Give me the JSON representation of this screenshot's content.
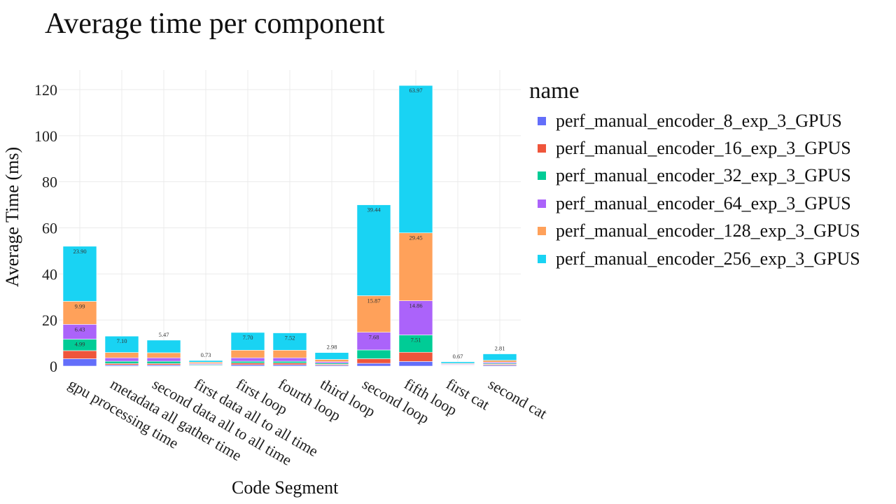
{
  "chart_data": {
    "type": "bar",
    "stacked": true,
    "title": "Average time per component",
    "xlabel": "Code Segment",
    "ylabel": "Average Time (ms)",
    "ylim": [
      0,
      128
    ],
    "yticks": [
      0,
      20,
      40,
      60,
      80,
      100,
      120
    ],
    "grid": true,
    "legend_title": "name",
    "legend_position": "right",
    "categories": [
      "gpu processing time",
      "metadata all gather time",
      "second data all to all time",
      "first data all to all time",
      "first loop",
      "fourth loop",
      "third loop",
      "second loop",
      "fifth loop",
      "first cat",
      "second cat"
    ],
    "series": [
      {
        "name": "perf_manual_encoder_8_exp_3_GPUS",
        "color": "#636efa",
        "values": [
          3.2,
          0.5,
          0.5,
          0.2,
          0.6,
          0.6,
          0.4,
          1.2,
          2.0,
          0.2,
          0.4
        ]
      },
      {
        "name": "perf_manual_encoder_16_exp_3_GPUS",
        "color": "#ef553b",
        "values": [
          3.5,
          0.6,
          0.6,
          0.2,
          0.7,
          0.7,
          0.4,
          2.0,
          4.0,
          0.2,
          0.4
        ]
      },
      {
        "name": "perf_manual_encoder_32_exp_3_GPUS",
        "color": "#00cc96",
        "values": [
          4.99,
          1.0,
          1.0,
          0.3,
          0.8,
          0.8,
          0.5,
          3.8,
          7.51,
          0.2,
          0.4
        ]
      },
      {
        "name": "perf_manual_encoder_64_exp_3_GPUS",
        "color": "#ab63fa",
        "values": [
          6.43,
          1.5,
          1.5,
          0.4,
          1.5,
          1.5,
          0.6,
          7.68,
          14.86,
          0.3,
          0.5
        ]
      },
      {
        "name": "perf_manual_encoder_128_exp_3_GPUS",
        "color": "#ffa15a",
        "values": [
          9.99,
          2.3,
          2.2,
          0.6,
          3.3,
          3.3,
          1.0,
          15.87,
          29.45,
          0.3,
          0.8
        ]
      },
      {
        "name": "perf_manual_encoder_256_exp_3_GPUS",
        "color": "#19d3f3",
        "values": [
          23.9,
          7.1,
          5.47,
          0.73,
          7.7,
          7.52,
          2.98,
          39.44,
          63.97,
          0.67,
          2.81
        ]
      }
    ],
    "data_labels": [
      {
        "category": 0,
        "series": 2,
        "text": "4.99"
      },
      {
        "category": 0,
        "series": 3,
        "text": "6.43"
      },
      {
        "category": 0,
        "series": 4,
        "text": "9.99"
      },
      {
        "category": 0,
        "series": 5,
        "text": "23.90"
      },
      {
        "category": 1,
        "series": 5,
        "text": "7.10"
      },
      {
        "category": 2,
        "series": 5,
        "text": "5.47",
        "outside": true
      },
      {
        "category": 3,
        "series": 5,
        "text": "0.73",
        "outside": true
      },
      {
        "category": 4,
        "series": 5,
        "text": "7.70"
      },
      {
        "category": 5,
        "series": 5,
        "text": "7.52"
      },
      {
        "category": 6,
        "series": 5,
        "text": "2.98",
        "outside": true
      },
      {
        "category": 7,
        "series": 3,
        "text": "7.68"
      },
      {
        "category": 7,
        "series": 4,
        "text": "15.87"
      },
      {
        "category": 7,
        "series": 5,
        "text": "39.44"
      },
      {
        "category": 8,
        "series": 2,
        "text": "7.51"
      },
      {
        "category": 8,
        "series": 3,
        "text": "14.86"
      },
      {
        "category": 8,
        "series": 4,
        "text": "29.45"
      },
      {
        "category": 8,
        "series": 5,
        "text": "63.97"
      },
      {
        "category": 9,
        "series": 5,
        "text": "0.67",
        "outside": true
      },
      {
        "category": 10,
        "series": 5,
        "text": "2.81",
        "outside": true
      }
    ]
  }
}
